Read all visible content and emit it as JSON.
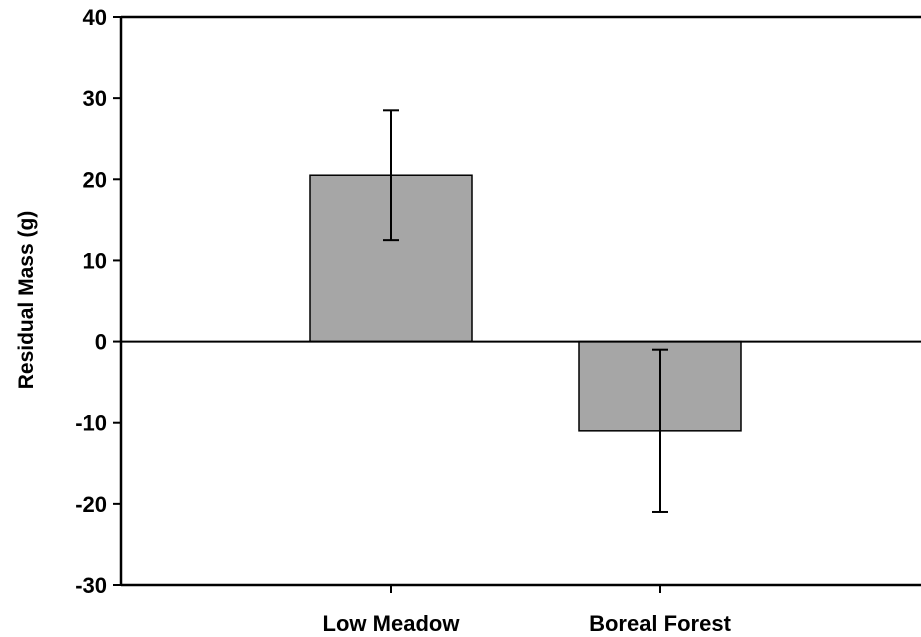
{
  "chart_data": {
    "type": "bar",
    "title": "",
    "xlabel": "",
    "ylabel": "Residual Mass (g)",
    "categories": [
      "Low Meadow",
      "Boreal Forest"
    ],
    "values": [
      20.5,
      -11.0
    ],
    "error": [
      8.0,
      10.0
    ],
    "ylim": [
      -30,
      40
    ],
    "yticks": [
      -30,
      -20,
      -10,
      0,
      10,
      20,
      30,
      40
    ],
    "grid": false,
    "bar_color": "#a6a6a6",
    "bar_edge_color": "#000000"
  }
}
